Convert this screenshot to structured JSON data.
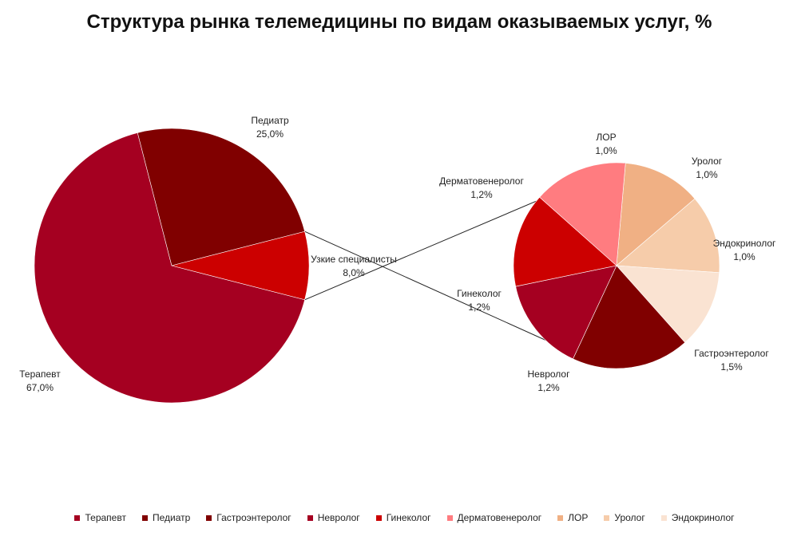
{
  "chart_data": {
    "type": "pie",
    "title": "Структура рынка телемедицины по видам оказываемых услуг, %",
    "main_pie": {
      "slices": [
        {
          "label": "Терапевт",
          "value": 67.0,
          "value_label": "67,0%",
          "color": "#A50021"
        },
        {
          "label": "Педиатр",
          "value": 25.0,
          "value_label": "25,0%",
          "color": "#800000"
        },
        {
          "label": "Узкие специалисты",
          "value": 8.0,
          "value_label": "8,0%",
          "color": "#CC0000"
        }
      ]
    },
    "secondary_pie": {
      "parent": "Узкие специалисты",
      "slices": [
        {
          "label": "ЛОР",
          "value": 1.0,
          "value_label": "1,0%",
          "color": "#F0B084"
        },
        {
          "label": "Уролог",
          "value": 1.0,
          "value_label": "1,0%",
          "color": "#F6CCAA"
        },
        {
          "label": "Эндокринолог",
          "value": 1.0,
          "value_label": "1,0%",
          "color": "#FAE3D2"
        },
        {
          "label": "Гастроэнтеролог",
          "value": 1.5,
          "value_label": "1,5%",
          "color": "#800000"
        },
        {
          "label": "Невролог",
          "value": 1.2,
          "value_label": "1,2%",
          "color": "#A50021"
        },
        {
          "label": "Гинеколог",
          "value": 1.2,
          "value_label": "1,2%",
          "color": "#CC0000"
        },
        {
          "label": "Дерматовенеролог",
          "value": 1.2,
          "value_label": "1,2%",
          "color": "#FF7C80"
        }
      ]
    },
    "legend": {
      "placement": "bottom",
      "items": [
        {
          "label": "Терапевт",
          "color": "#A50021"
        },
        {
          "label": "Педиатр",
          "color": "#800000"
        },
        {
          "label": "Гастроэнтеролог",
          "color": "#800000"
        },
        {
          "label": "Невролог",
          "color": "#A50021"
        },
        {
          "label": "Гинеколог",
          "color": "#CC0000"
        },
        {
          "label": "Дерматовенеролог",
          "color": "#FF7C80"
        },
        {
          "label": "ЛОР",
          "color": "#F0B084"
        },
        {
          "label": "Уролог",
          "color": "#F6CCAA"
        },
        {
          "label": "Эндокринолог",
          "color": "#FAE3D2"
        }
      ]
    }
  }
}
